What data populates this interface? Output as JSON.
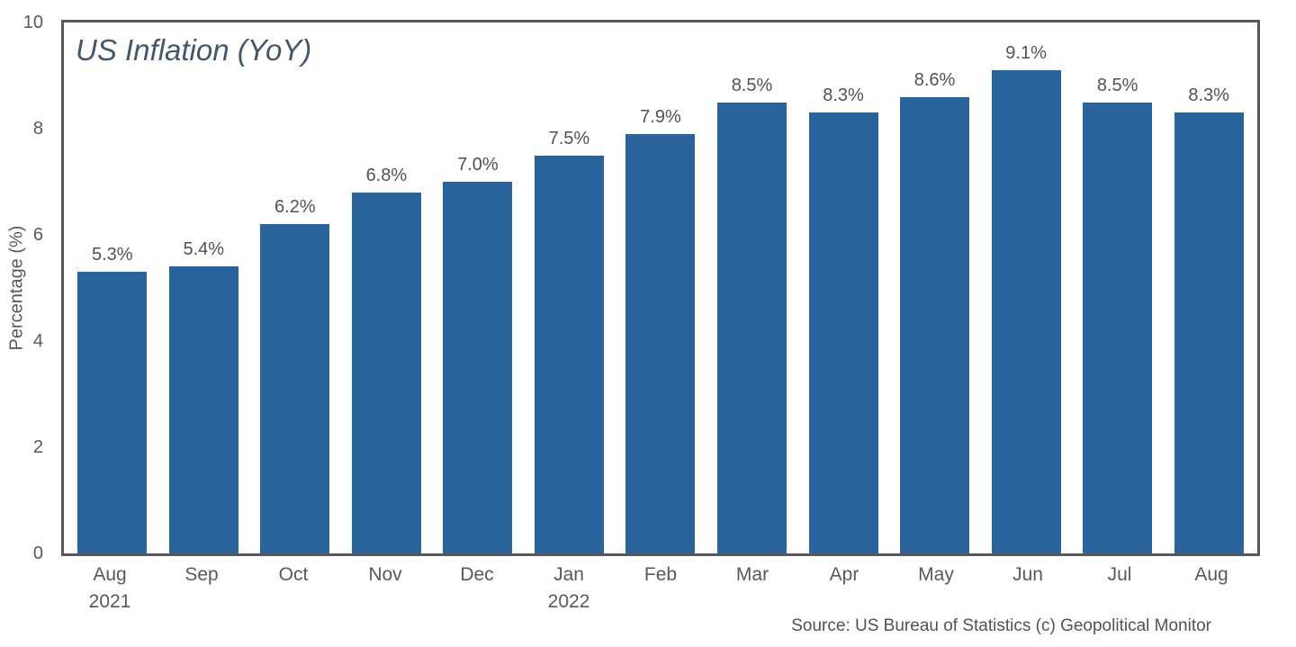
{
  "chart_data": {
    "type": "bar",
    "title": "US Inflation (YoY)",
    "ylabel": "Percentage (%)",
    "xlabel": "",
    "ylim": [
      0,
      10
    ],
    "yticks": [
      "0",
      "2",
      "4",
      "6",
      "8",
      "10"
    ],
    "grid": false,
    "legend": "none",
    "categories": [
      "Aug",
      "Sep",
      "Oct",
      "Nov",
      "Dec",
      "Jan",
      "Feb",
      "Mar",
      "Apr",
      "May",
      "Jun",
      "Jul",
      "Aug"
    ],
    "category_years": [
      "2021",
      "",
      "",
      "",
      "",
      "2022",
      "",
      "",
      "",
      "",
      "",
      "",
      ""
    ],
    "values": [
      5.3,
      5.4,
      6.2,
      6.8,
      7.0,
      7.5,
      7.9,
      8.5,
      8.3,
      8.6,
      9.1,
      8.5,
      8.3
    ],
    "value_labels": [
      "5.3%",
      "5.4%",
      "6.2%",
      "6.8%",
      "7.0%",
      "7.5%",
      "7.9%",
      "8.5%",
      "8.3%",
      "8.6%",
      "9.1%",
      "8.5%",
      "8.3%"
    ],
    "source": "Source: US Bureau of Statistics (c) Geopolitical Monitor",
    "colors": {
      "bar": "#2b649d",
      "axis": "#56575a",
      "tick_label": "#58595b",
      "value_label": "#515254",
      "title": "#44576c",
      "source": "#515254"
    }
  }
}
